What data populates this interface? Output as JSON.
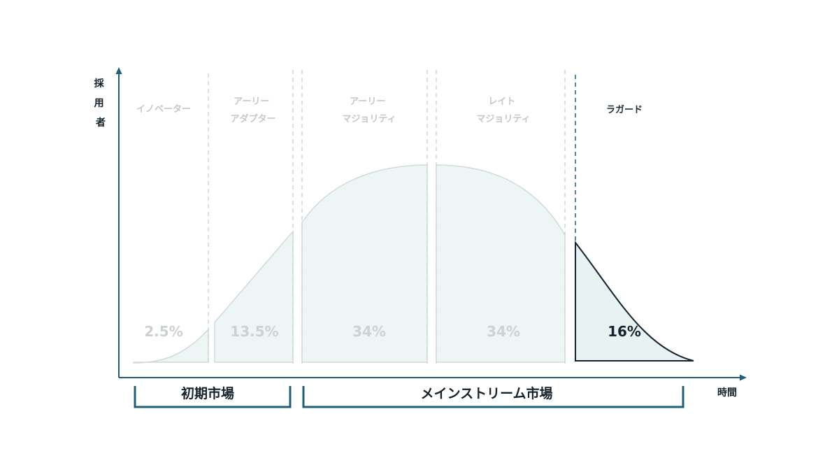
{
  "diagram": {
    "y_axis_label": "採用者",
    "x_axis_label": "時間",
    "segments": [
      {
        "id": "innovators",
        "label_lines": [
          "イノベーター"
        ],
        "share": "2.5%",
        "highlighted": false
      },
      {
        "id": "early-adopters",
        "label_lines": [
          "アーリー",
          "アダプター"
        ],
        "share": "13.5%",
        "highlighted": false
      },
      {
        "id": "early-majority",
        "label_lines": [
          "アーリー",
          "マジョリティ"
        ],
        "share": "34%",
        "highlighted": false
      },
      {
        "id": "late-majority",
        "label_lines": [
          "レイト",
          "マジョリティ"
        ],
        "share": "34%",
        "highlighted": false
      },
      {
        "id": "laggards",
        "label_lines": [
          "ラガード"
        ],
        "share": "16%",
        "highlighted": true
      }
    ],
    "markets": [
      {
        "id": "early-market",
        "label": "初期市場"
      },
      {
        "id": "mainstream-market",
        "label": "メインストリーム市場"
      }
    ],
    "colors": {
      "axis": "#1f5f7a",
      "fill": "#eef5f5",
      "fill_outline": "#d2d9dc",
      "divider": "#cfd5d8",
      "highlight_stroke": "#142330",
      "highlight_fill": "#e9f2f2",
      "highlight_divider": "#1f5f7a",
      "bracket": "#1f5f7a"
    }
  }
}
